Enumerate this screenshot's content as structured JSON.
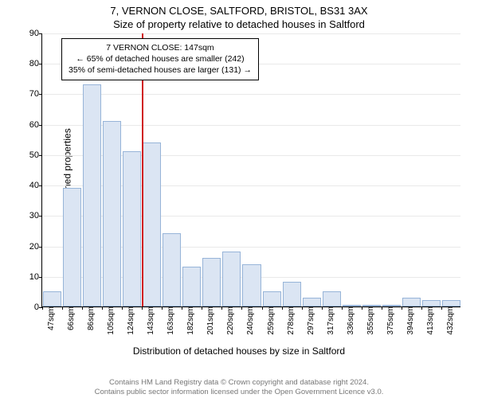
{
  "title": {
    "main": "7, VERNON CLOSE, SALTFORD, BRISTOL, BS31 3AX",
    "sub": "Size of property relative to detached houses in Saltford"
  },
  "chart": {
    "type": "histogram",
    "y_axis": {
      "label": "Number of detached properties",
      "min": 0,
      "max": 90,
      "tick_step": 10,
      "ticks": [
        0,
        10,
        20,
        30,
        40,
        50,
        60,
        70,
        80,
        90
      ],
      "label_fontsize": 12
    },
    "x_axis": {
      "label": "Distribution of detached houses by size in Saltford",
      "ticks": [
        "47sqm",
        "66sqm",
        "86sqm",
        "105sqm",
        "124sqm",
        "143sqm",
        "163sqm",
        "182sqm",
        "201sqm",
        "220sqm",
        "240sqm",
        "259sqm",
        "278sqm",
        "297sqm",
        "317sqm",
        "336sqm",
        "355sqm",
        "375sqm",
        "394sqm",
        "413sqm",
        "432sqm"
      ],
      "label_fontsize": 12
    },
    "bars": {
      "values": [
        5,
        39,
        73,
        61,
        51,
        54,
        24,
        13,
        16,
        18,
        14,
        5,
        8,
        3,
        5,
        0,
        0,
        0,
        3,
        2,
        2
      ],
      "fill": "#dbe5f3",
      "stroke": "#97b4d8",
      "width_ratio": 0.92
    },
    "marker": {
      "index": 5,
      "color": "#d01c1f",
      "annotation": {
        "lines": [
          "7 VERNON CLOSE: 147sqm",
          "← 65% of detached houses are smaller (242)",
          "35% of semi-detached houses are larger (131) →"
        ]
      }
    },
    "grid": {
      "color": "#e9e9e9"
    },
    "background": "#ffffff"
  },
  "attribution": {
    "line1": "Contains HM Land Registry data © Crown copyright and database right 2024.",
    "line2": "Contains public sector information licensed under the Open Government Licence v3.0."
  }
}
